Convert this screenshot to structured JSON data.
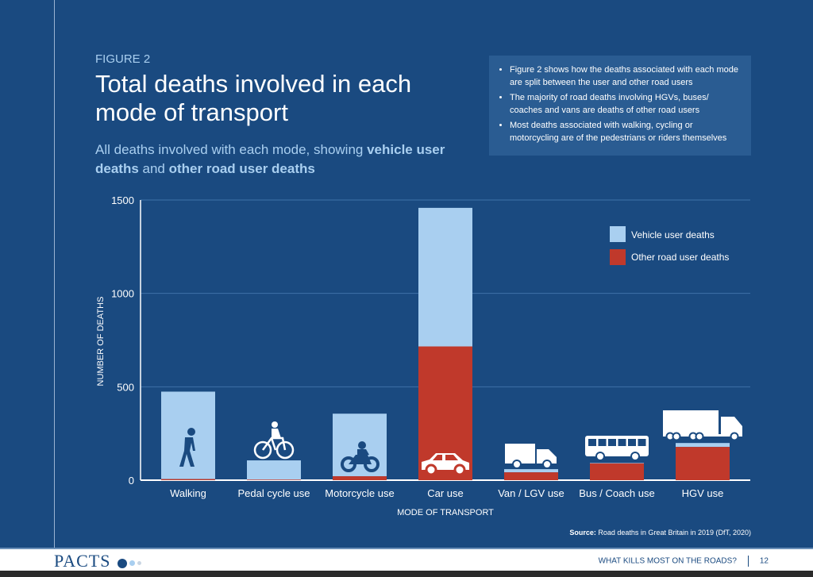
{
  "header": {
    "figure_label": "FIGURE 2",
    "title": "Total deaths involved in each mode of transport",
    "subtitle_pre": "All deaths involved with each mode, showing ",
    "subtitle_b1": "vehicle user deaths",
    "subtitle_mid": " and ",
    "subtitle_b2": "other road user deaths"
  },
  "notes": [
    "Figure 2 shows how the deaths associated with each mode are split between the user and other road users",
    "The majority of road deaths involving HGVs, buses/ coaches and vans are deaths of other road users",
    "Most deaths associated with walking, cycling or motorcycling are of the pedestrians or riders themselves"
  ],
  "source_label": "Source:",
  "source_text": " Road deaths in Great Britain in 2019 (DfT, 2020)",
  "footer": {
    "logo": "PACTS",
    "title": "WHAT KILLS MOST ON THE ROADS?",
    "page": "12"
  },
  "colors": {
    "vehicle": "#a9cff0",
    "other": "#c0392b",
    "bg": "#1a4a80"
  },
  "chart_data": {
    "type": "bar",
    "stacked": true,
    "xlabel": "MODE OF TRANSPORT",
    "ylabel": "NUMBER OF DEATHS",
    "ylim": [
      0,
      1500
    ],
    "yticks": [
      0,
      500,
      1000,
      1500
    ],
    "categories": [
      "Walking",
      "Pedal cycle use",
      "Motorcycle use",
      "Car use",
      "Van / LGV use",
      "Bus / Coach use",
      "HGV use"
    ],
    "icons": [
      "pedestrian-icon",
      "bicycle-icon",
      "motorcycle-icon",
      "car-icon",
      "van-icon",
      "bus-icon",
      "hgv-truck-icon"
    ],
    "series": [
      {
        "name": "Other road user deaths",
        "values": [
          6,
          3,
          21,
          716,
          42,
          90,
          178
        ]
      },
      {
        "name": "Vehicle user deaths",
        "values": [
          468,
          103,
          335,
          742,
          17,
          3,
          21
        ]
      }
    ],
    "legend": [
      "Vehicle user deaths",
      "Other road user deaths"
    ],
    "legend_position": "top-right",
    "grid": true
  }
}
